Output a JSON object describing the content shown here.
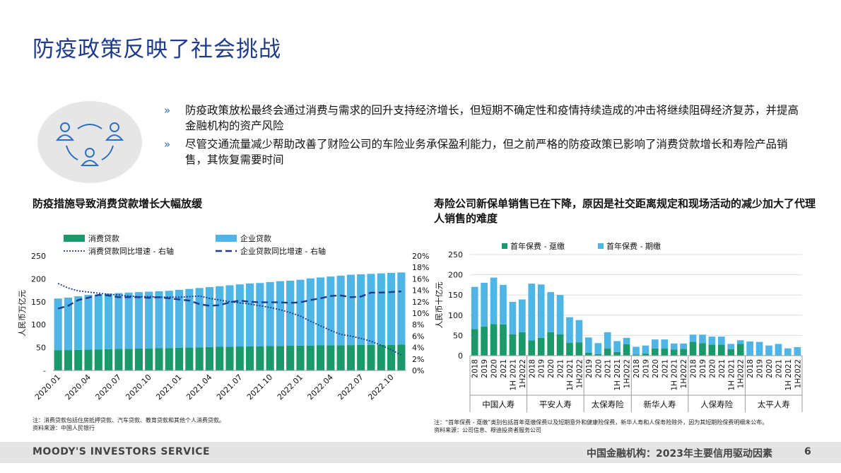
{
  "title": "防疫政策反映了社会挑战",
  "icon": "people-network-icon",
  "bullets": [
    {
      "mark": "»",
      "text": "防疫政策放松最终会通过消费与需求的回升支持经济增长，但短期不确定性和疫情持续造成的冲击将继续阻碍经济复苏，并提高金融机构的资产风险"
    },
    {
      "mark": "»",
      "text": "尽管交通流量减少帮助改善了财险公司的车险业务承保盈利能力，但之前严格的防疫政策已影响了消费贷款增长和寿险产品销售，其恢复需要时间"
    }
  ],
  "colors": {
    "green": "#1a9a6a",
    "blue": "#4eb5e6",
    "navy": "#1f3b8c",
    "title": "#1f3b8c"
  },
  "chart_data": [
    {
      "type": "bar",
      "stacked": true,
      "title": "防疫措施导致消费贷款增长大幅放缓",
      "ylabel": "人民币万亿元",
      "ylim": [
        0,
        250
      ],
      "y_ticks": [
        "250",
        "200",
        "150",
        "100",
        "50",
        "-"
      ],
      "y2lim": [
        0,
        20
      ],
      "y2_ticks": [
        "20%",
        "18%",
        "16%",
        "14%",
        "12%",
        "10%",
        "8%",
        "6%",
        "4%",
        "2%",
        "0%"
      ],
      "x_labels": [
        "2020.01",
        "2020.04",
        "2020.07",
        "2020.10",
        "2021.01",
        "2021.04",
        "2021.07",
        "2021.10",
        "2022.01",
        "2022.04",
        "2022.07",
        "2022.10"
      ],
      "legend": [
        "消费贷款",
        "企业贷款",
        "消费贷款同比增速 - 右轴",
        "企业贷款同比增速 - 右轴"
      ],
      "legend_position": "top",
      "series": [
        {
          "name": "消费贷款",
          "kind": "bar",
          "color": "#1a9a6a",
          "values": [
            44.5,
            44.6,
            45.0,
            45.4,
            46.0,
            46.5,
            47.0,
            47.4,
            47.8,
            48.2,
            48.6,
            49.0,
            49.5,
            50.0,
            50.6,
            51.2,
            51.7,
            52.1,
            52.4,
            52.7,
            53.0,
            53.3,
            53.6,
            54.0,
            54.3,
            54.5,
            54.8,
            55.0,
            55.2,
            55.4,
            55.6,
            55.8,
            56.0,
            56.1,
            56.3
          ]
        },
        {
          "name": "企业贷款",
          "kind": "bar",
          "color": "#4eb5e6",
          "values": [
            112.5,
            114.4,
            117.0,
            119.6,
            120.0,
            121.5,
            122.0,
            122.6,
            123.2,
            123.8,
            124.4,
            125.0,
            126.5,
            128.0,
            129.4,
            130.8,
            132.3,
            133.9,
            135.6,
            137.3,
            138.0,
            139.7,
            141.4,
            142.0,
            143.7,
            146.5,
            148.2,
            150.0,
            151.8,
            153.6,
            154.4,
            155.2,
            156.0,
            156.9,
            157.7
          ]
        },
        {
          "name": "消费贷款同比增速 - 右轴",
          "kind": "line",
          "axis": "right",
          "style": "dotted",
          "color": "#1f3b8c",
          "values": [
            15.2,
            14.4,
            13.9,
            13.7,
            13.5,
            13.3,
            13.2,
            13.0,
            12.9,
            12.9,
            12.8,
            12.8,
            12.8,
            12.9,
            13.0,
            12.6,
            12.3,
            12.0,
            11.8,
            11.6,
            11.3,
            11.0,
            10.6,
            10.1,
            9.5,
            8.6,
            7.8,
            7.0,
            6.3,
            6.0,
            5.6,
            5.1,
            4.4,
            3.6,
            2.7
          ]
        },
        {
          "name": "企业贷款同比增速 - 右轴",
          "kind": "line",
          "axis": "right",
          "style": "dashed",
          "color": "#1f3b8c",
          "values": [
            10.8,
            11.3,
            12.3,
            12.7,
            13.2,
            13.1,
            12.8,
            12.8,
            12.8,
            12.7,
            12.8,
            12.6,
            12.4,
            12.2,
            11.6,
            11.3,
            11.4,
            11.9,
            12.2,
            12.0,
            11.9,
            11.9,
            11.9,
            11.8,
            11.9,
            12.3,
            12.6,
            13.0,
            13.1,
            12.8,
            12.9,
            13.6,
            13.6,
            13.7,
            13.8
          ]
        }
      ],
      "note": "注：消费贷款包括住房抵押贷款、汽车贷款、教育贷款和其他个人消费贷款。",
      "source": "资料来源：中国人民银行"
    },
    {
      "type": "bar",
      "stacked": true,
      "title": "寿险公司新保单销售已在下降，原因是社交距离规定和现场活动的减少加大了代理人销售的难度",
      "ylabel": "人民币十亿元",
      "ylim": [
        0,
        250
      ],
      "y_ticks": [
        "250",
        "200",
        "150",
        "100",
        "50",
        "0"
      ],
      "legend": [
        "首年保费 - 趸缴",
        "首年保费 - 期缴"
      ],
      "legend_position": "top",
      "groups": [
        {
          "label": "中国人寿",
          "categories": [
            "2018",
            "2019",
            "2020",
            "2021",
            "1H 2021",
            "1H2022"
          ],
          "single": [
            66,
            72,
            78,
            77,
            53,
            58
          ],
          "regular": [
            104,
            108,
            115,
            98,
            80,
            81
          ]
        },
        {
          "label": "平安人寿",
          "categories": [
            "2018",
            "2019",
            "2020",
            "2021",
            "1H 2021",
            "1H2022"
          ],
          "single": [
            38,
            44,
            58,
            53,
            32,
            33
          ],
          "regular": [
            140,
            132,
            99,
            97,
            63,
            55
          ]
        },
        {
          "label": "太保寿险",
          "categories": [
            "2019",
            "2020",
            "2021",
            "1H 2021",
            "1H2022"
          ],
          "single": [
            7,
            4,
            18,
            9,
            28
          ],
          "regular": [
            38,
            27,
            40,
            27,
            16
          ]
        },
        {
          "label": "新华人寿",
          "categories": [
            "2018",
            "2019",
            "2020",
            "2021",
            "1H 2021",
            "1H2022"
          ],
          "single": [
            3,
            5,
            18,
            18,
            15,
            17
          ],
          "regular": [
            19,
            20,
            22,
            22,
            15,
            13
          ]
        },
        {
          "label": "人保寿险",
          "categories": [
            "2018",
            "2019",
            "2020",
            "2021",
            "1H 2021",
            "1H2022"
          ],
          "single": [
            34,
            31,
            27,
            27,
            16,
            29
          ],
          "regular": [
            18,
            21,
            20,
            20,
            13,
            9
          ]
        },
        {
          "label": "太平人寿",
          "categories": [
            "2018",
            "2019",
            "2020",
            "2021",
            "1H 2021",
            "1H2022"
          ],
          "single": [
            0,
            0,
            0,
            0,
            0,
            0
          ],
          "regular": [
            35,
            34,
            25,
            29,
            18,
            21
          ]
        }
      ],
      "note": "注：“首年保费 - 趸缴”类别包括首年趸缴保费以及短期意外和健康险保费，新华人寿和人保寿险除外，因为其短期险保费明细未公布。",
      "source": "资料来源：公司信息、穆迪投资者服务公司"
    }
  ],
  "footer": {
    "brand": "MOODY'S INVESTORS SERVICE",
    "report": "中国金融机构：2023年主要信用驱动因素",
    "page": "6"
  }
}
